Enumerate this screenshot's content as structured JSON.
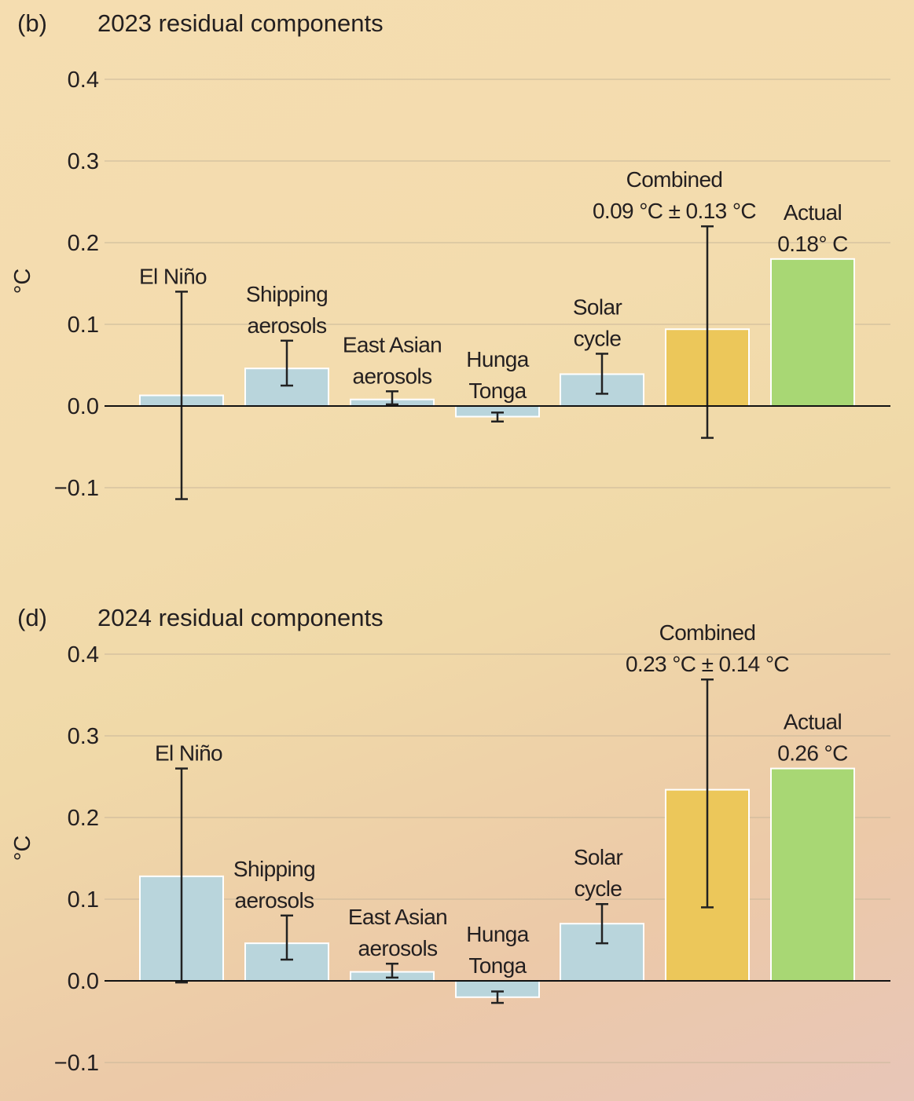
{
  "colors": {
    "component": "#b9d5dc",
    "combined": "#ecc75a",
    "actual": "#a8d774",
    "background": "#f3dcae"
  },
  "chart_data": [
    {
      "type": "bar",
      "panel_label": "(b)",
      "title": "2023 residual components",
      "ylabel": "°C",
      "ylim": [
        -0.15,
        0.42
      ],
      "yticks": [
        0.4,
        0.3,
        0.2,
        0.1,
        0.0,
        -0.1
      ],
      "ytick_labels": [
        "0.4",
        "0.3",
        "0.2",
        "0.1",
        "0.0",
        "−0.1"
      ],
      "grid": true,
      "categories": [
        {
          "label": [
            "El Niño"
          ],
          "value": 0.013,
          "err_low": -0.114,
          "err_high": 0.14,
          "kind": "component"
        },
        {
          "label": [
            "Shipping",
            "aerosols"
          ],
          "value": 0.046,
          "err_low": 0.025,
          "err_high": 0.08,
          "kind": "component"
        },
        {
          "label": [
            "East Asian",
            "aerosols"
          ],
          "value": 0.008,
          "err_low": 0.002,
          "err_high": 0.018,
          "kind": "component"
        },
        {
          "label": [
            "Hunga",
            "Tonga"
          ],
          "value": -0.013,
          "err_low": -0.019,
          "err_high": -0.008,
          "kind": "component"
        },
        {
          "label": [
            "Solar",
            "cycle"
          ],
          "value": 0.039,
          "err_low": 0.015,
          "err_high": 0.064,
          "kind": "component"
        },
        {
          "label": [
            "Combined",
            "0.09 °C ± 0.13 °C"
          ],
          "value": 0.094,
          "err_low": -0.039,
          "err_high": 0.22,
          "kind": "combined"
        },
        {
          "label": [
            "Actual",
            "0.18° C"
          ],
          "value": 0.18,
          "kind": "actual"
        }
      ]
    },
    {
      "type": "bar",
      "panel_label": "(d)",
      "title": "2024 residual components",
      "ylabel": "°C",
      "ylim": [
        -0.12,
        0.42
      ],
      "yticks": [
        0.4,
        0.3,
        0.2,
        0.1,
        0.0,
        -0.1
      ],
      "ytick_labels": [
        "0.4",
        "0.3",
        "0.2",
        "0.1",
        "0.0",
        "−0.1"
      ],
      "grid": true,
      "categories": [
        {
          "label": [
            "El Niño"
          ],
          "value": 0.128,
          "err_low": -0.002,
          "err_high": 0.26,
          "kind": "component"
        },
        {
          "label": [
            "Shipping",
            "aerosols"
          ],
          "value": 0.046,
          "err_low": 0.026,
          "err_high": 0.08,
          "kind": "component"
        },
        {
          "label": [
            "East Asian",
            "aerosols"
          ],
          "value": 0.011,
          "err_low": 0.004,
          "err_high": 0.021,
          "kind": "component"
        },
        {
          "label": [
            "Hunga",
            "Tonga"
          ],
          "value": -0.02,
          "err_low": -0.027,
          "err_high": -0.013,
          "kind": "component"
        },
        {
          "label": [
            "Solar",
            "cycle"
          ],
          "value": 0.07,
          "err_low": 0.046,
          "err_high": 0.094,
          "kind": "component"
        },
        {
          "label": [
            "Combined",
            "0.23 °C ± 0.14 °C"
          ],
          "value": 0.234,
          "err_low": 0.09,
          "err_high": 0.369,
          "kind": "combined"
        },
        {
          "label": [
            "Actual",
            "0.26 °C"
          ],
          "value": 0.26,
          "kind": "actual"
        }
      ]
    }
  ]
}
